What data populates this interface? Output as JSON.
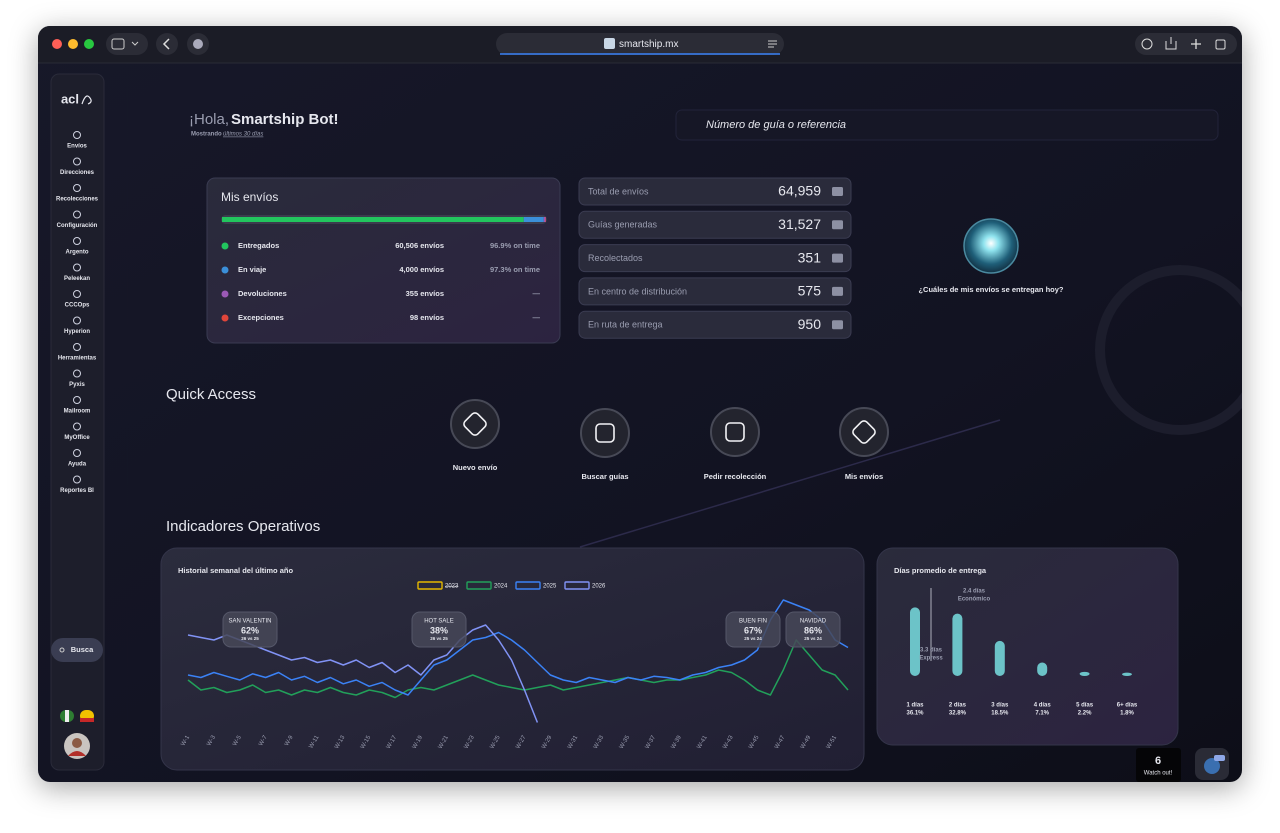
{
  "browser": {
    "url": "smartship.mx"
  },
  "sidebar": {
    "logo": "acl",
    "items": [
      "Envíos",
      "Direcciones",
      "Recolecciones",
      "Configuración",
      "Argento",
      "Peleekan",
      "CCCOps",
      "Hyperion",
      "Herramientas",
      "Pyxis",
      "Mailroom",
      "MyOffice",
      "Ayuda",
      "Reportes BI"
    ],
    "search": "Busca"
  },
  "header": {
    "greeting": "¡Hola,",
    "user": "Smartship Bot!",
    "showing": "Mostrando",
    "period": "últimos 30 días",
    "search_placeholder": "Número de guía o referencia"
  },
  "shipments": {
    "title": "Mis envíos",
    "rows": [
      {
        "name": "Entregados",
        "color": "#22c55e",
        "value": 60506,
        "label": "60,506 envíos",
        "on_time": "96.9% on time"
      },
      {
        "name": "En viaje",
        "color": "#3b8fd9",
        "value": 4000,
        "label": "4,000 envíos",
        "on_time": "97.3% on time"
      },
      {
        "name": "Devoluciones",
        "color": "#9b59b6",
        "value": 355,
        "label": "355 envíos",
        "on_time": "—"
      },
      {
        "name": "Excepciones",
        "color": "#e0453a",
        "value": 98,
        "label": "98 envíos",
        "on_time": "—"
      }
    ]
  },
  "stats": [
    {
      "label": "Total de envíos",
      "value": "64,959"
    },
    {
      "label": "Guías generadas",
      "value": "31,527"
    },
    {
      "label": "Recolectados",
      "value": "351"
    },
    {
      "label": "En centro de distribución",
      "value": "575"
    },
    {
      "label": "En ruta de entrega",
      "value": "950"
    }
  ],
  "assistant": {
    "question": "¿Cuáles de mis envíos se entregan hoy?"
  },
  "quick_access": {
    "title": "Quick Access",
    "items": [
      "Nuevo envío",
      "Buscar guías",
      "Pedir recolección",
      "Mis envíos"
    ]
  },
  "indicators": {
    "title": "Indicadores Operativos"
  },
  "chart_data": [
    {
      "type": "line",
      "title": "Historial semanal del último año",
      "categories": [
        "W-1",
        null,
        "W-3",
        null,
        "W-5",
        null,
        "W-7",
        null,
        "W-9",
        null,
        "W-11",
        null,
        "W-13",
        null,
        "W-15",
        null,
        "W-17",
        null,
        "W-19",
        null,
        "W-21",
        null,
        "W-23",
        null,
        "W-25",
        null,
        "W-27",
        null,
        "W-29",
        null,
        "W-31",
        null,
        "W-33",
        null,
        "W-35",
        null,
        "W-37",
        null,
        "W-39",
        null,
        "W-41",
        null,
        "W-43",
        null,
        "W-45",
        null,
        "W-47",
        null,
        "W-49",
        null,
        "W-51",
        null
      ],
      "ylim": [
        0,
        100
      ],
      "series": [
        {
          "name": "2023",
          "color": "#e5b800",
          "visible": false
        },
        {
          "name": "2024",
          "color": "#22a05a",
          "values": [
            36,
            28,
            30,
            26,
            28,
            32,
            26,
            28,
            24,
            28,
            26,
            30,
            26,
            24,
            28,
            26,
            22,
            28,
            30,
            28,
            32,
            36,
            40,
            36,
            32,
            30,
            28,
            30,
            32,
            28,
            30,
            32,
            34,
            36,
            38,
            36,
            34,
            36,
            36,
            38,
            40,
            44,
            42,
            36,
            28,
            24,
            44,
            68,
            56,
            44,
            40,
            28
          ]
        },
        {
          "name": "2025",
          "color": "#3b82f6",
          "values": [
            40,
            38,
            42,
            39,
            36,
            41,
            38,
            42,
            36,
            39,
            34,
            38,
            33,
            36,
            31,
            34,
            28,
            24,
            36,
            48,
            52,
            60,
            68,
            70,
            74,
            68,
            60,
            50,
            40,
            36,
            34,
            38,
            36,
            34,
            38,
            36,
            39,
            38,
            36,
            40,
            42,
            46,
            48,
            52,
            60,
            84,
            100,
            96,
            92,
            84,
            68,
            62
          ]
        },
        {
          "name": "2026",
          "color": "#8193f5",
          "values": [
            72,
            70,
            68,
            72,
            68,
            64,
            60,
            56,
            52,
            54,
            50,
            52,
            48,
            52,
            46,
            50,
            42,
            48,
            40,
            52,
            56,
            68,
            76,
            80,
            68,
            52,
            28,
            2,
            null,
            null,
            null,
            null,
            null,
            null,
            null,
            null,
            null,
            null,
            null,
            null,
            null,
            null,
            null,
            null,
            null,
            null,
            null,
            null,
            null,
            null,
            null,
            null
          ]
        }
      ],
      "annotations": [
        {
          "title": "SAN VALENTIN",
          "value": "62%",
          "note": "26 vs 25"
        },
        {
          "title": "HOT SALE",
          "value": "38%",
          "note": "26 vs 25"
        },
        {
          "title": "BUEN FIN",
          "value": "67%",
          "note": "25 vs 24"
        },
        {
          "title": "NAVIDAD",
          "value": "86%",
          "note": "25 vs 24"
        }
      ]
    },
    {
      "type": "bar",
      "title": "Días promedio de entrega",
      "categories": [
        "1 días",
        "2 días",
        "3 días",
        "4 días",
        "5 días",
        "6+ días"
      ],
      "values": [
        36.1,
        32.8,
        18.5,
        7.1,
        2.2,
        1.8
      ],
      "value_labels": [
        "36.1%",
        "32.8%",
        "18.5%",
        "7.1%",
        "2.2%",
        "1.8%"
      ],
      "color": "#6cc3c8",
      "ylim": [
        0,
        40
      ],
      "annotations": [
        {
          "label": "3.3 días",
          "note": "Express"
        },
        {
          "label": "2.4 días",
          "note": "Económico"
        }
      ]
    }
  ],
  "alerts": {
    "count": 6,
    "label": "Watch out!"
  }
}
